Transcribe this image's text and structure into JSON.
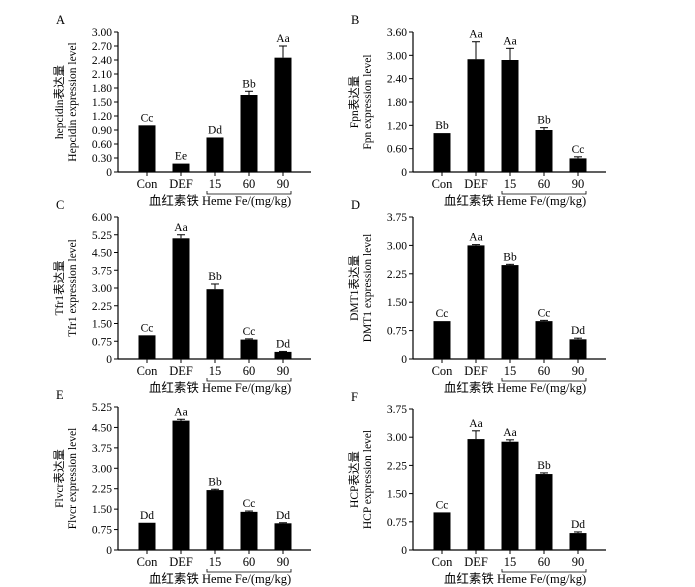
{
  "chart_data": [
    {
      "panel": "A",
      "type": "bar",
      "categories": [
        "Con",
        "DEF",
        "15",
        "60",
        "90"
      ],
      "values": [
        1.0,
        0.18,
        0.74,
        1.65,
        2.45
      ],
      "errors": [
        0.0,
        0.0,
        0.0,
        0.08,
        0.25
      ],
      "labels": [
        "Cc",
        "Ee",
        "Dd",
        "Bb",
        "Aa"
      ],
      "ylabel_cn": "hepcidin表达量",
      "ylabel_en": "Hepcidin expression level",
      "xlabel": "血红素铁 Heme Fe/(mg/kg)",
      "ylim": [
        0,
        3.0
      ],
      "yticks": [
        "0",
        "0.30",
        "0.60",
        "0.90",
        "1.20",
        "1.50",
        "1.80",
        "2.10",
        "2.40",
        "2.70",
        "3.00"
      ]
    },
    {
      "panel": "B",
      "type": "bar",
      "categories": [
        "Con",
        "DEF",
        "15",
        "60",
        "90"
      ],
      "values": [
        1.0,
        2.9,
        2.88,
        1.08,
        0.35
      ],
      "errors": [
        0.0,
        0.45,
        0.3,
        0.06,
        0.04
      ],
      "labels": [
        "Bb",
        "Aa",
        "Aa",
        "Bb",
        "Cc"
      ],
      "ylabel_cn": "Fpn表达量",
      "ylabel_en": "Fpn expression level",
      "xlabel": "血红素铁 Heme Fe/(mg/kg)",
      "ylim": [
        0,
        3.6
      ],
      "yticks": [
        "0",
        "0.60",
        "1.20",
        "1.80",
        "2.40",
        "3.00",
        "3.60"
      ]
    },
    {
      "panel": "C",
      "type": "bar",
      "categories": [
        "Con",
        "DEF",
        "15",
        "60",
        "90"
      ],
      "values": [
        1.0,
        5.1,
        2.95,
        0.82,
        0.3
      ],
      "errors": [
        0.0,
        0.15,
        0.22,
        0.03,
        0.02
      ],
      "labels": [
        "Cc",
        "Aa",
        "Bb",
        "Cc",
        "Dd"
      ],
      "ylabel_cn": "Tfr1表达量",
      "ylabel_en": "Tfr1 expression level",
      "xlabel": "血红素铁 Heme Fe/(mg/kg)",
      "ylim": [
        0,
        6.0
      ],
      "yticks": [
        "0",
        "0.75",
        "1.50",
        "2.25",
        "3.00",
        "3.75",
        "4.50",
        "5.25",
        "6.00"
      ]
    },
    {
      "panel": "D",
      "type": "bar",
      "categories": [
        "Con",
        "DEF",
        "15",
        "60",
        "90"
      ],
      "values": [
        1.0,
        3.0,
        2.48,
        1.0,
        0.52
      ],
      "errors": [
        0.0,
        0.02,
        0.02,
        0.02,
        0.03
      ],
      "labels": [
        "Cc",
        "Aa",
        "Bb",
        "Cc",
        "Dd"
      ],
      "ylabel_cn": "DMT1表达量",
      "ylabel_en": "DMT1 expression level",
      "xlabel": "血红素铁 Heme Fe/(mg/kg)",
      "ylim": [
        0,
        3.75
      ],
      "yticks": [
        "0",
        "0.75",
        "1.50",
        "2.25",
        "3.00",
        "3.75"
      ]
    },
    {
      "panel": "E",
      "type": "bar",
      "categories": [
        "Con",
        "DEF",
        "15",
        "60",
        "90"
      ],
      "values": [
        1.0,
        4.75,
        2.2,
        1.4,
        0.98
      ],
      "errors": [
        0.0,
        0.05,
        0.03,
        0.03,
        0.02
      ],
      "labels": [
        "Dd",
        "Aa",
        "Bb",
        "Cc",
        "Dd"
      ],
      "ylabel_cn": "Flvcr表达量",
      "ylabel_en": "Flvcr expression level",
      "xlabel": "血红素铁 Heme Fe/(mg/kg)",
      "ylim": [
        0,
        5.25
      ],
      "yticks": [
        "0",
        "0.75",
        "1.50",
        "2.25",
        "3.00",
        "3.75",
        "4.50",
        "5.25"
      ]
    },
    {
      "panel": "F",
      "type": "bar",
      "categories": [
        "Con",
        "DEF",
        "15",
        "60",
        "90"
      ],
      "values": [
        1.0,
        2.95,
        2.88,
        2.02,
        0.45
      ],
      "errors": [
        0.0,
        0.22,
        0.05,
        0.03,
        0.03
      ],
      "labels": [
        "Cc",
        "Aa",
        "Aa",
        "Bb",
        "Dd"
      ],
      "ylabel_cn": "HCP表达量",
      "ylabel_en": "HCP expression level",
      "xlabel": "血红素铁 Heme Fe/(mg/kg)",
      "ylim": [
        0,
        3.75
      ],
      "yticks": [
        "0",
        "0.75",
        "1.50",
        "2.25",
        "3.00",
        "3.75"
      ]
    }
  ]
}
